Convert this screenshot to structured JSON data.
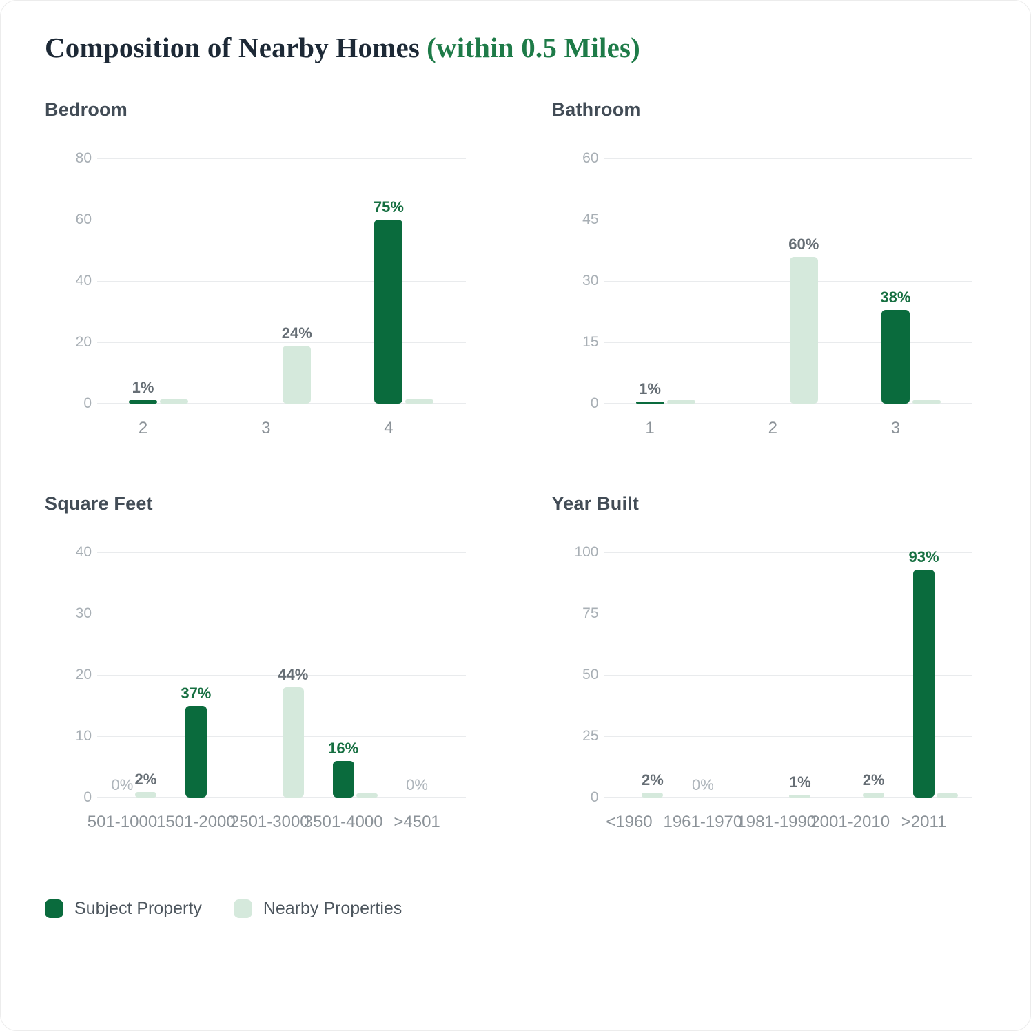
{
  "page": {
    "title": "Composition of Nearby Homes",
    "title_suffix": "(within 0.5 Miles)"
  },
  "colors": {
    "subject_bar": "#0a6b3d",
    "nearby_bar": "#d5e9dc",
    "label_green": "#166f41",
    "label_grey": "#666e75",
    "label_lightgrey": "#aeb5bb",
    "title_navy": "#1d2936",
    "title_green": "#1e7b48"
  },
  "legend": {
    "items": [
      {
        "name": "subject",
        "label": "Subject Property",
        "color": "#0a6b3d"
      },
      {
        "name": "nearby",
        "label": "Nearby Properties",
        "color": "#d5e9dc"
      }
    ]
  },
  "chart_data": [
    {
      "type": "bar",
      "title": "Bedroom",
      "ylabel": "",
      "xlabel": "",
      "ylim": [
        0,
        80
      ],
      "y_ticks": [
        80,
        60,
        40,
        20,
        0
      ],
      "grid": true,
      "legend_position": "bottom",
      "series_names": [
        "Subject Property",
        "Nearby Properties"
      ],
      "categories": [
        {
          "label": "2",
          "subject": 1.1,
          "nearby": 1.3,
          "subject_pct": "1%",
          "subject_pct_style": "grey"
        },
        {
          "label": "3",
          "subject": 0,
          "nearby": 19,
          "nearby_pct": "24%",
          "nearby_pct_style": "grey"
        },
        {
          "label": "4",
          "subject": 60,
          "nearby": 1.3,
          "subject_pct": "75%",
          "subject_pct_style": "green"
        }
      ]
    },
    {
      "type": "bar",
      "title": "Bathroom",
      "ylabel": "",
      "xlabel": "",
      "ylim": [
        0,
        60
      ],
      "y_ticks": [
        60,
        45,
        30,
        15,
        0
      ],
      "grid": true,
      "legend_position": "bottom",
      "series_names": [
        "Subject Property",
        "Nearby Properties"
      ],
      "categories": [
        {
          "label": "1",
          "subject": 0.55,
          "nearby": 0.85,
          "subject_pct": "1%",
          "subject_pct_style": "grey"
        },
        {
          "label": "2",
          "subject": 0,
          "nearby": 36,
          "nearby_pct": "60%",
          "nearby_pct_style": "grey"
        },
        {
          "label": "3",
          "subject": 23,
          "nearby": 0.85,
          "subject_pct": "38%",
          "subject_pct_style": "green"
        }
      ]
    },
    {
      "type": "bar",
      "title": "Square Feet",
      "ylabel": "",
      "xlabel": "",
      "ylim": [
        0,
        40
      ],
      "y_ticks": [
        40,
        30,
        20,
        10,
        0
      ],
      "grid": true,
      "legend_position": "bottom",
      "series_names": [
        "Subject Property",
        "Nearby Properties"
      ],
      "categories": [
        {
          "label": "501-1000",
          "subject": 0,
          "nearby": 0.9,
          "subject_pct": "0%",
          "subject_pct_style": "lightgrey",
          "nearby_pct": "2%",
          "nearby_pct_style": "grey"
        },
        {
          "label": "1501-2000",
          "subject": 15,
          "nearby": 0,
          "subject_pct": "37%",
          "subject_pct_style": "green"
        },
        {
          "label": "2501-3000",
          "subject": 0,
          "nearby": 18,
          "nearby_pct": "44%",
          "nearby_pct_style": "grey"
        },
        {
          "label": "3501-4000",
          "subject": 6,
          "nearby": 0.7,
          "subject_pct": "16%",
          "subject_pct_style": "green"
        },
        {
          "label": ">4501",
          "subject": 0,
          "nearby": 0,
          "subject_pct": "0%",
          "subject_pct_style": "lightgrey"
        }
      ]
    },
    {
      "type": "bar",
      "title": "Year Built",
      "ylabel": "",
      "xlabel": "",
      "ylim": [
        0,
        100
      ],
      "y_ticks": [
        100,
        75,
        50,
        25,
        0
      ],
      "grid": true,
      "legend_position": "bottom",
      "series_names": [
        "Subject Property",
        "Nearby Properties"
      ],
      "categories": [
        {
          "label": "<1960",
          "subject": 0,
          "nearby": 2,
          "nearby_pct": "2%",
          "nearby_pct_style": "grey"
        },
        {
          "label": "1961-1970",
          "subject": 0,
          "nearby": 0,
          "subject_pct": "0%",
          "subject_pct_style": "lightgrey"
        },
        {
          "label": "1981-1990",
          "subject": 0,
          "nearby": 1.1,
          "nearby_pct": "1%",
          "nearby_pct_style": "grey"
        },
        {
          "label": "2001-2010",
          "subject": 0,
          "nearby": 2,
          "nearby_pct": "2%",
          "nearby_pct_style": "grey"
        },
        {
          "label": ">2011",
          "subject": 93,
          "nearby": 1.7,
          "subject_pct": "93%",
          "subject_pct_style": "green"
        }
      ]
    }
  ]
}
